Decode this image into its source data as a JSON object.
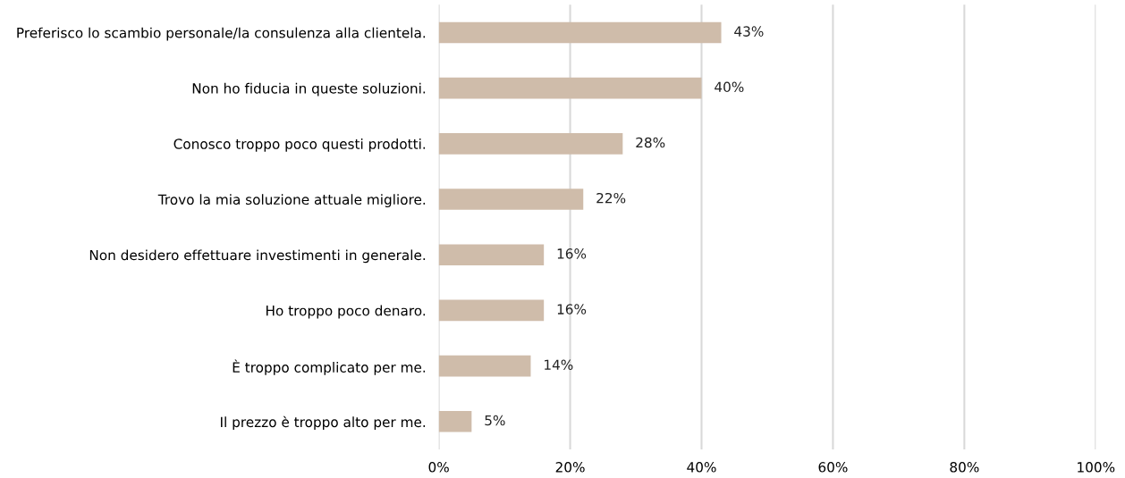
{
  "chart_data": {
    "type": "bar",
    "orientation": "horizontal",
    "categories": [
      "Preferisco lo scambio personale/la consulenza alla clientela.",
      "Non ho fiducia in queste soluzioni.",
      "Conosco troppo poco questi prodotti.",
      "Trovo la mia soluzione attuale migliore.",
      "Non desidero effettuare investimenti in generale.",
      "Ho troppo poco denaro.",
      "È troppo complicato per me.",
      "Il prezzo è troppo alto per me."
    ],
    "values": [
      43,
      40,
      28,
      22,
      16,
      16,
      14,
      5
    ],
    "value_labels": [
      "43%",
      "40%",
      "28%",
      "22%",
      "16%",
      "16%",
      "14%",
      "5%"
    ],
    "color": "#cfbcaa",
    "xlim": [
      0,
      100
    ],
    "xticks": [
      {
        "value": 0,
        "label": "0%"
      },
      {
        "value": 20,
        "label": "20%"
      },
      {
        "value": 40,
        "label": "40%"
      },
      {
        "value": 60,
        "label": "60%"
      },
      {
        "value": 80,
        "label": "80%"
      },
      {
        "value": 100,
        "label": "100%"
      }
    ],
    "grid": "x",
    "legend": false
  }
}
